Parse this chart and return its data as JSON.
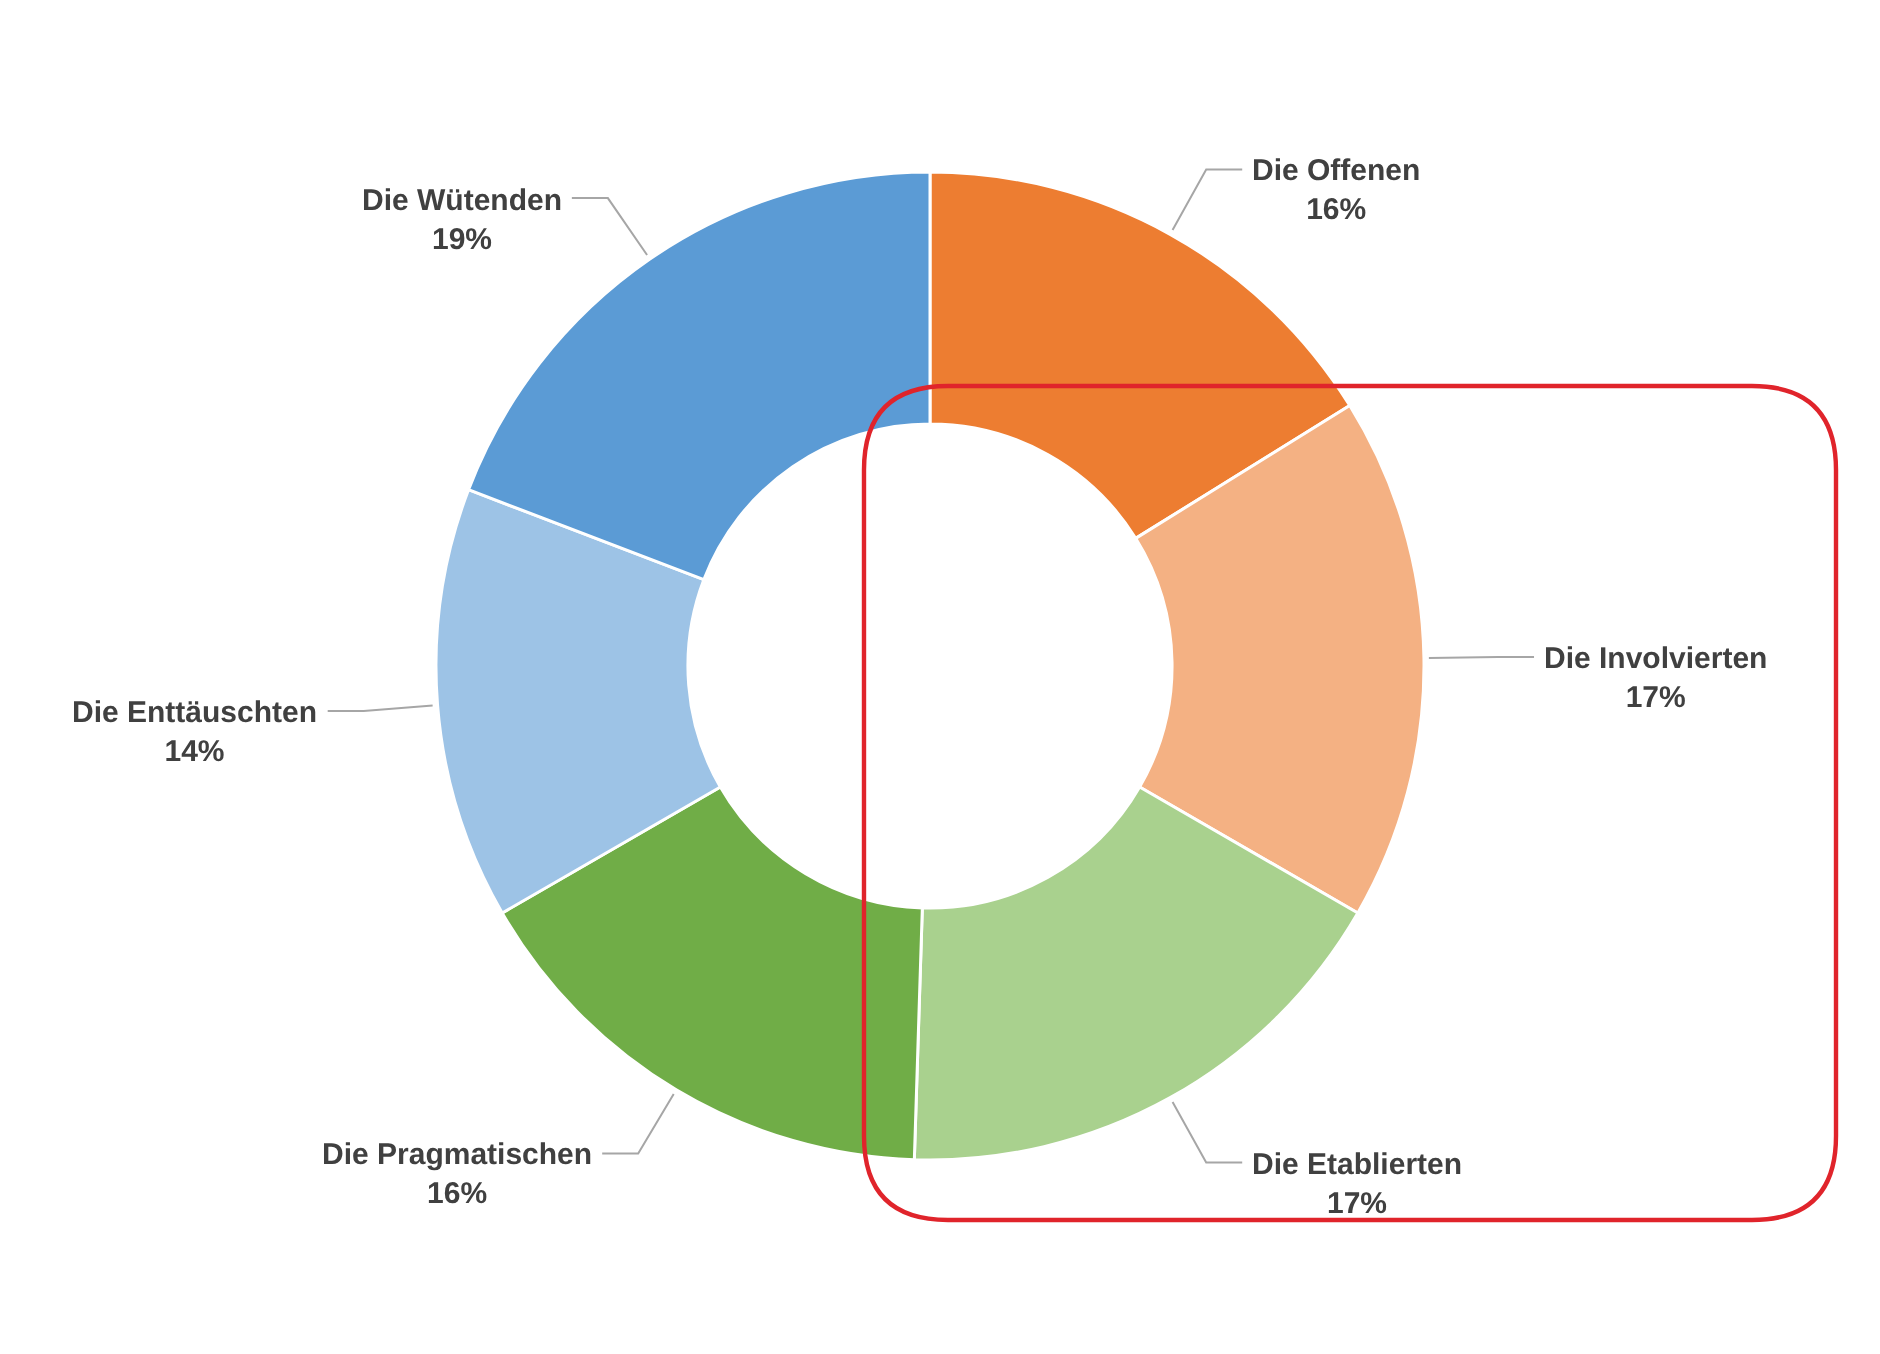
{
  "chart_data": {
    "type": "donut",
    "categories": [
      "Die Offenen",
      "Die Involvierten",
      "Die Etablierten",
      "Die Pragmatischen",
      "Die Enttäuschten",
      "Die Wütenden"
    ],
    "values": [
      16,
      17,
      17,
      16,
      14,
      19
    ],
    "value_labels": [
      "16%",
      "17%",
      "17%",
      "16%",
      "14%",
      "19%"
    ],
    "colors": [
      "#ed7d31",
      "#f4b183",
      "#a9d18e",
      "#70ad47",
      "#9dc3e6",
      "#5b9bd5"
    ],
    "legend": false
  }
}
